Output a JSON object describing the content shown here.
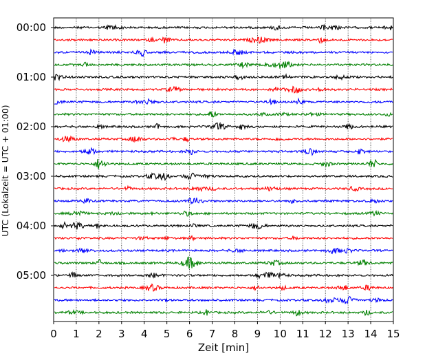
{
  "chart_data": {
    "type": "line",
    "xlabel": "Zeit  [min]",
    "ylabel": "UTC (Lokalzeit = UTC + 01:00)",
    "xlim": [
      0,
      15
    ],
    "x_ticks": [
      "0",
      "1",
      "2",
      "3",
      "4",
      "5",
      "6",
      "7",
      "8",
      "9",
      "10",
      "11",
      "12",
      "13",
      "14",
      "15"
    ],
    "y_tick_labels": [
      "00:00",
      "01:00",
      "02:00",
      "03:00",
      "04:00",
      "05:00"
    ],
    "row_interval_minutes": 15,
    "row_count": 24,
    "color_cycle": [
      "#000000",
      "#ff0000",
      "#0000ff",
      "#008000"
    ],
    "vertical_grid": "dotted",
    "horizontal_grid": false,
    "legend": null
  }
}
